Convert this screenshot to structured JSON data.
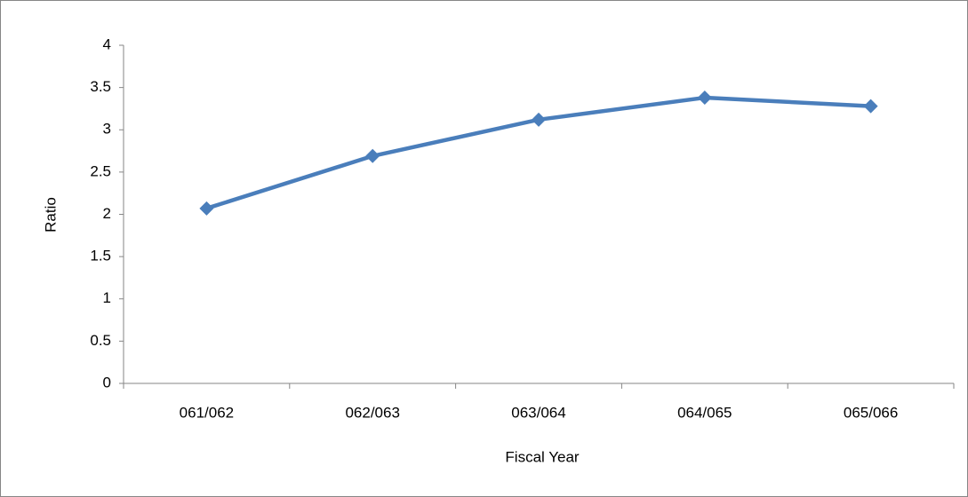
{
  "chart_data": {
    "type": "line",
    "x_label": "Fiscal Year",
    "y_label": "Ratio",
    "categories": [
      "061/062",
      "062/063",
      "063/064",
      "064/065",
      "065/066"
    ],
    "values": [
      2.07,
      2.69,
      3.12,
      3.38,
      3.28
    ],
    "color": "#4a7ebb",
    "ylim": [
      0,
      4
    ],
    "yticks": [
      0,
      0.5,
      1,
      1.5,
      2,
      2.5,
      3,
      3.5,
      4
    ],
    "grid": false
  }
}
